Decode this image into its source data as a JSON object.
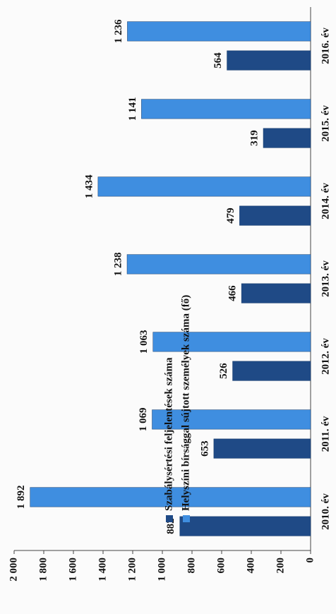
{
  "chart_data": {
    "type": "bar",
    "categories": [
      "2010. év",
      "2011. év",
      "2012. év",
      "2013. év",
      "2014. év",
      "2015. év",
      "2016. év"
    ],
    "series": [
      {
        "name": "Szabálysértési feljelentések száma",
        "color": "#1f4a86",
        "values": [
          882,
          653,
          526,
          466,
          479,
          319,
          564
        ]
      },
      {
        "name": "Helyszíni bírsággal sújtott személyek száma (fő)",
        "color": "#3f8ee0",
        "values": [
          1892,
          1069,
          1063,
          1238,
          1434,
          1141,
          1236
        ],
        "value_labels": [
          "1 892",
          "1 069",
          "1 063",
          "1 238",
          "1 434",
          "1 141",
          "1 236"
        ]
      }
    ],
    "ylim": [
      0,
      2000
    ],
    "yticks": [
      0,
      200,
      400,
      600,
      800,
      {
        "value": 1000,
        "label": "1 000"
      },
      {
        "value": 1200,
        "label": "1 200"
      },
      {
        "value": 1400,
        "label": "1 400"
      },
      {
        "value": 1600,
        "label": "1 600"
      },
      {
        "value": 1800,
        "label": "1 800"
      },
      {
        "value": 2000,
        "label": "2 000"
      }
    ]
  }
}
